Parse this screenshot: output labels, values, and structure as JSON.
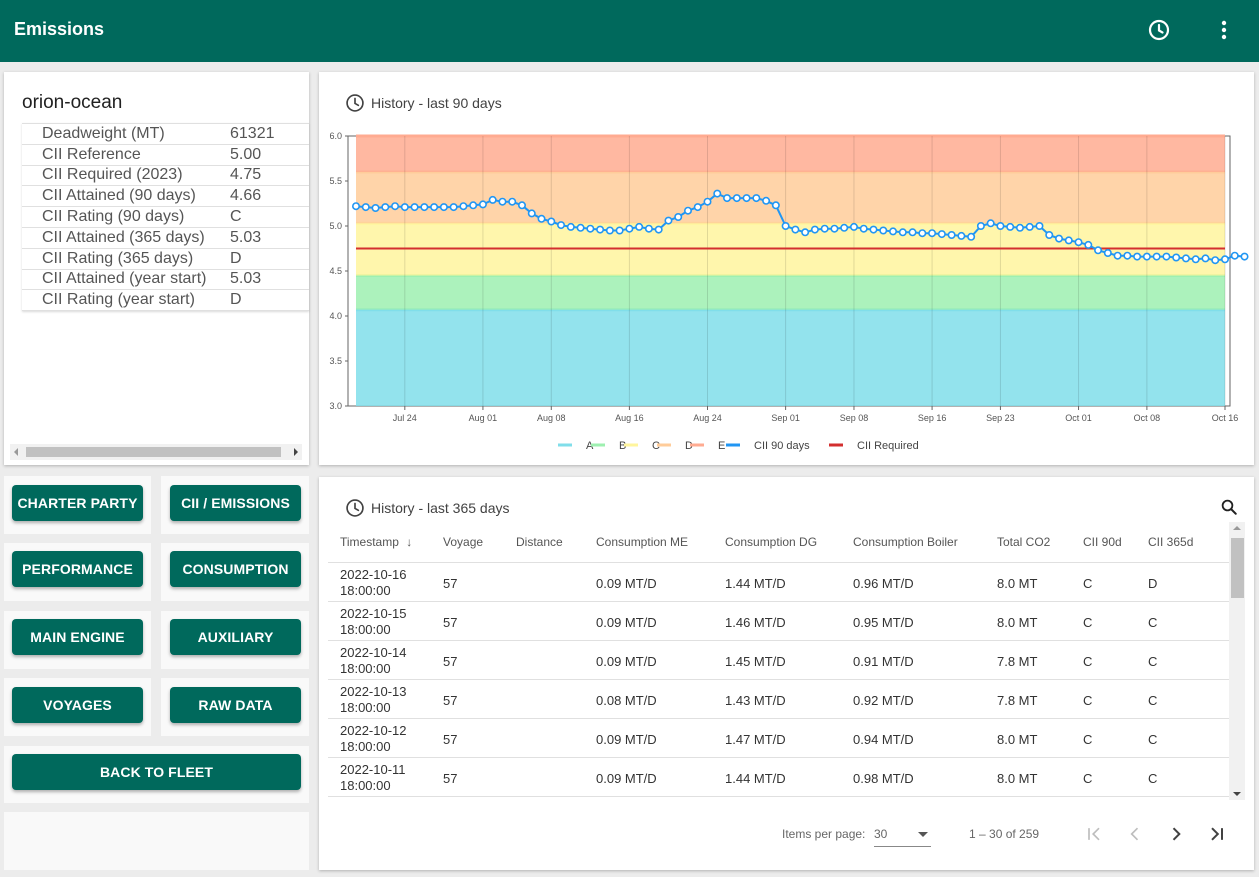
{
  "app": {
    "title": "Emissions",
    "icons": [
      "history-icon",
      "more-vert-icon"
    ]
  },
  "vessel": {
    "name": "orion-ocean",
    "rows": [
      {
        "label": "Deadweight (MT)",
        "value": "61321"
      },
      {
        "label": "CII Reference",
        "value": "5.00"
      },
      {
        "label": "CII Required (2023)",
        "value": "4.75"
      },
      {
        "label": "CII Attained (90 days)",
        "value": "4.66"
      },
      {
        "label": "CII Rating (90 days)",
        "value": "C"
      },
      {
        "label": "CII Attained (365 days)",
        "value": "5.03"
      },
      {
        "label": "CII Rating (365 days)",
        "value": "D"
      },
      {
        "label": "CII Attained (year start)",
        "value": "5.03"
      },
      {
        "label": "CII Rating (year start)",
        "value": "D"
      }
    ]
  },
  "nav": {
    "charter_party": "CHARTER PARTY",
    "cii_emissions": "CII / EMISSIONS",
    "performance": "PERFORMANCE",
    "consumption": "CONSUMPTION",
    "main_engine": "MAIN ENGINE",
    "auxiliary": "AUXILIARY",
    "voyages": "VOYAGES",
    "raw_data": "RAW DATA",
    "back_to_fleet": "BACK TO FLEET"
  },
  "history90": {
    "title": "History - last 90 days"
  },
  "chart_data": {
    "type": "line",
    "title": "History - last 90 days",
    "ylim": [
      3.0,
      6.0
    ],
    "yticks": [
      "6.0",
      "5.5",
      "5.0",
      "4.5",
      "4.0",
      "3.5",
      "3.0"
    ],
    "xticks": [
      "Jul 24",
      "Aug 01",
      "Aug 08",
      "Aug 16",
      "Aug 24",
      "Sep 01",
      "Sep 08",
      "Sep 16",
      "Sep 23",
      "Oct 01",
      "Oct 08",
      "Oct 16"
    ],
    "x_range": [
      "2022-07-19",
      "2022-10-16"
    ],
    "grid": true,
    "legend_position": "bottom",
    "bands": [
      {
        "name": "A",
        "from": 3.0,
        "to": 4.07,
        "color": "#80deea"
      },
      {
        "name": "B",
        "from": 4.07,
        "to": 4.45,
        "color": "#9ef0b0"
      },
      {
        "name": "C",
        "from": 4.45,
        "to": 5.03,
        "color": "#fff59d"
      },
      {
        "name": "D",
        "from": 5.03,
        "to": 5.6,
        "color": "#ffcc9a"
      },
      {
        "name": "E",
        "from": 5.6,
        "to": 6.0,
        "color": "#ffab91"
      }
    ],
    "series": [
      {
        "name": "CII 90 days",
        "color": "#2196f3",
        "start_date": "2022-07-19",
        "values": [
          5.22,
          5.21,
          5.2,
          5.21,
          5.22,
          5.21,
          5.21,
          5.21,
          5.21,
          5.21,
          5.21,
          5.22,
          5.23,
          5.24,
          5.29,
          5.27,
          5.27,
          5.23,
          5.14,
          5.08,
          5.05,
          5.01,
          4.99,
          4.98,
          4.97,
          4.96,
          4.95,
          4.95,
          4.97,
          4.99,
          4.97,
          4.96,
          5.06,
          5.1,
          5.17,
          5.21,
          5.27,
          5.36,
          5.31,
          5.31,
          5.31,
          5.31,
          5.28,
          5.23,
          5.0,
          4.96,
          4.93,
          4.96,
          4.97,
          4.97,
          4.98,
          4.99,
          4.97,
          4.96,
          4.95,
          4.94,
          4.93,
          4.93,
          4.92,
          4.92,
          4.91,
          4.9,
          4.89,
          4.88,
          5.0,
          5.03,
          5.0,
          4.99,
          4.98,
          4.99,
          5.0,
          4.9,
          4.86,
          4.84,
          4.82,
          4.79,
          4.73,
          4.7,
          4.67,
          4.67,
          4.66,
          4.66,
          4.66,
          4.66,
          4.65,
          4.64,
          4.63,
          4.64,
          4.62,
          4.63,
          4.67,
          4.66
        ]
      },
      {
        "name": "CII Required",
        "color": "#d32f2f",
        "value": 4.75
      }
    ],
    "legend": [
      "A",
      "B",
      "C",
      "D",
      "E",
      "CII 90 days",
      "CII Required"
    ]
  },
  "history365": {
    "title": "History - last 365 days",
    "columns": [
      "Timestamp",
      "Voyage",
      "Distance",
      "Consumption ME",
      "Consumption DG",
      "Consumption Boiler",
      "Total CO2",
      "CII 90d",
      "CII 365d"
    ],
    "sort_indicator": "↓",
    "rows": [
      {
        "ts": "2022-10-16 18:00:00",
        "voyage": "57",
        "distance": "",
        "me": "0.09 MT/D",
        "dg": "1.44 MT/D",
        "boiler": "0.96 MT/D",
        "co2": "8.0 MT",
        "cii90": "C",
        "cii365": "D"
      },
      {
        "ts": "2022-10-15 18:00:00",
        "voyage": "57",
        "distance": "",
        "me": "0.09 MT/D",
        "dg": "1.46 MT/D",
        "boiler": "0.95 MT/D",
        "co2": "8.0 MT",
        "cii90": "C",
        "cii365": "C"
      },
      {
        "ts": "2022-10-14 18:00:00",
        "voyage": "57",
        "distance": "",
        "me": "0.09 MT/D",
        "dg": "1.45 MT/D",
        "boiler": "0.91 MT/D",
        "co2": "7.8 MT",
        "cii90": "C",
        "cii365": "C"
      },
      {
        "ts": "2022-10-13 18:00:00",
        "voyage": "57",
        "distance": "",
        "me": "0.08 MT/D",
        "dg": "1.43 MT/D",
        "boiler": "0.92 MT/D",
        "co2": "7.8 MT",
        "cii90": "C",
        "cii365": "C"
      },
      {
        "ts": "2022-10-12 18:00:00",
        "voyage": "57",
        "distance": "",
        "me": "0.09 MT/D",
        "dg": "1.47 MT/D",
        "boiler": "0.94 MT/D",
        "co2": "8.0 MT",
        "cii90": "C",
        "cii365": "C"
      },
      {
        "ts": "2022-10-11 18:00:00",
        "voyage": "57",
        "distance": "",
        "me": "0.09 MT/D",
        "dg": "1.44 MT/D",
        "boiler": "0.98 MT/D",
        "co2": "8.0 MT",
        "cii90": "C",
        "cii365": "C"
      }
    ],
    "pager": {
      "items_per_page_label": "Items per page:",
      "items_per_page": "30",
      "range": "1 – 30 of 259"
    }
  }
}
